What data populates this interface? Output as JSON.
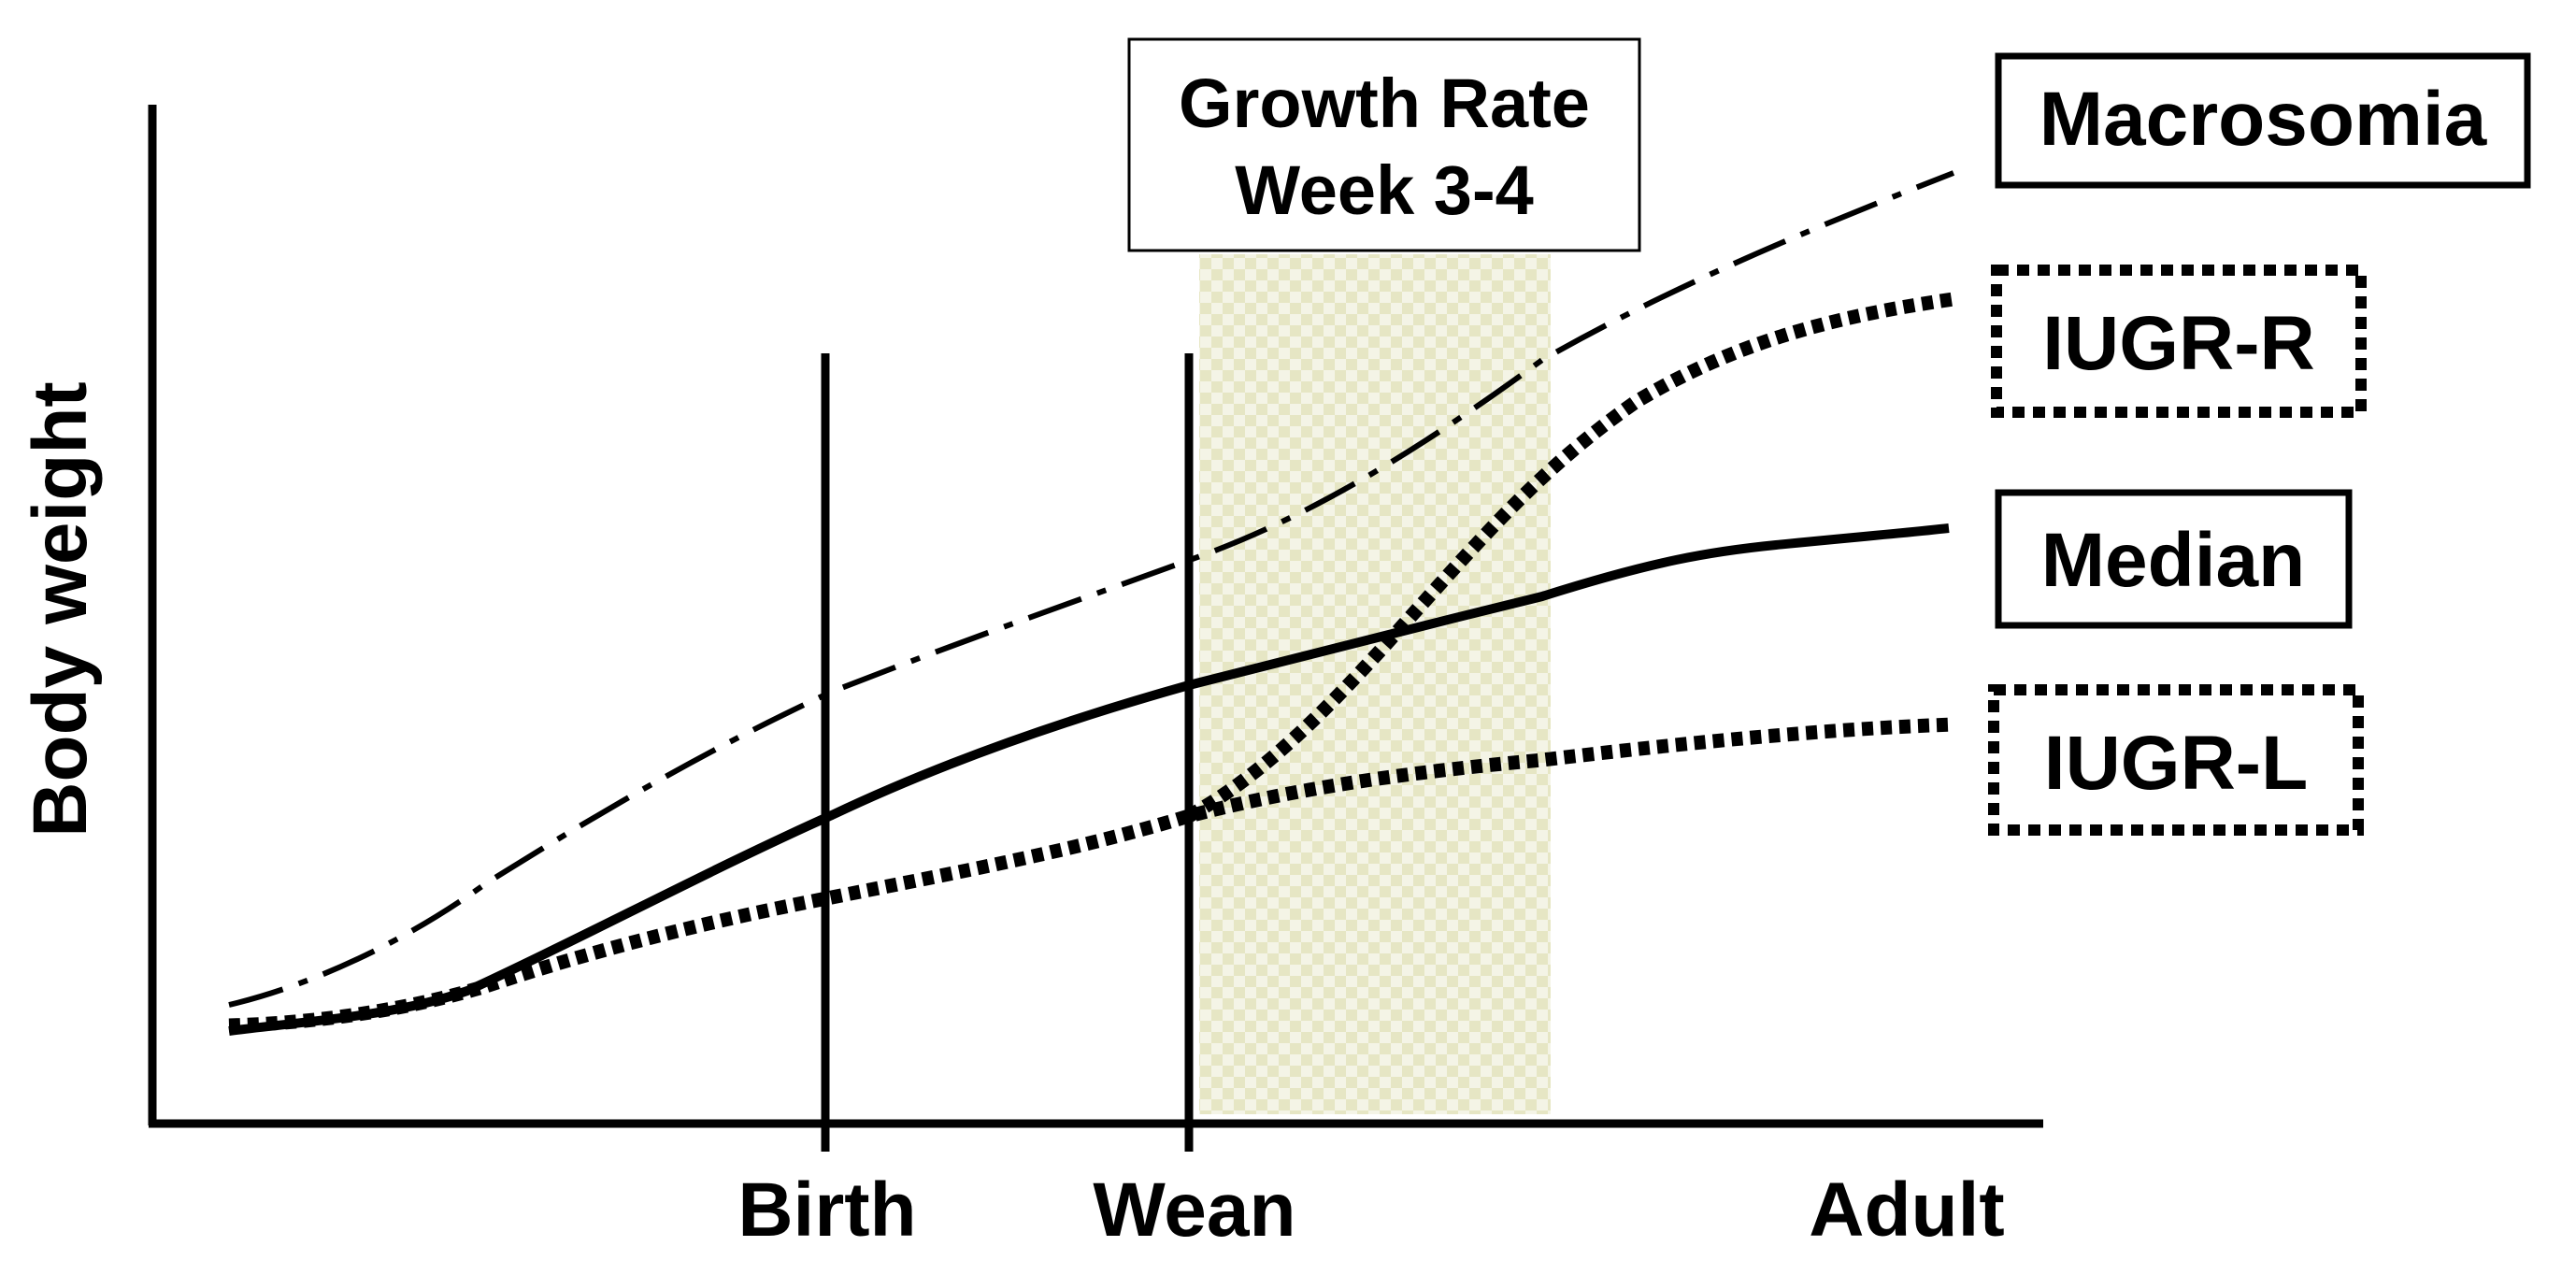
{
  "y_axis_label": "Body weight",
  "x_ticks": [
    "Birth",
    "Wean",
    "Adult"
  ],
  "window_box": {
    "line1": "Growth Rate",
    "line2": "Week 3-4"
  },
  "curves": [
    {
      "id": "macrosomia",
      "label": "Macrosomia",
      "style": "dash-dot",
      "box_style": "solid"
    },
    {
      "id": "iugr-r",
      "label": "IUGR-R",
      "style": "dotted-thick",
      "box_style": "dotted"
    },
    {
      "id": "median",
      "label": "Median",
      "style": "solid",
      "box_style": "solid"
    },
    {
      "id": "iugr-l",
      "label": "IUGR-L",
      "style": "dotted-thick",
      "box_style": "dotted"
    }
  ],
  "colors": {
    "ink": "#000000",
    "window_fill": "#e6e6c4",
    "window_fill_alt": "#f4f4e6",
    "background": "#ffffff"
  }
}
